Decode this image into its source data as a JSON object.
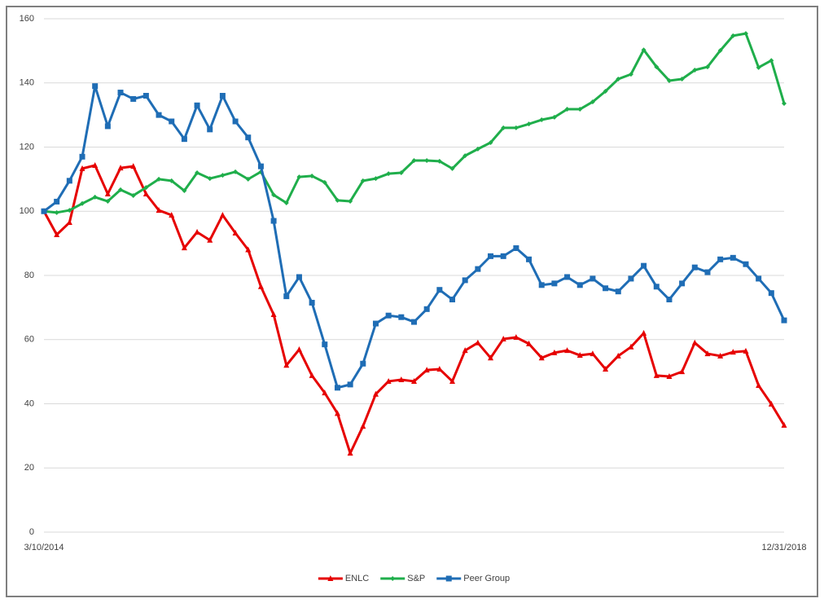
{
  "chart_data": {
    "type": "line",
    "categories": [
      "3/10/2014",
      null,
      null,
      null,
      null,
      null,
      null,
      null,
      null,
      null,
      null,
      null,
      null,
      null,
      null,
      null,
      null,
      null,
      null,
      null,
      null,
      null,
      null,
      null,
      null,
      null,
      null,
      null,
      null,
      null,
      null,
      null,
      null,
      null,
      null,
      null,
      null,
      null,
      null,
      null,
      null,
      null,
      null,
      null,
      null,
      null,
      null,
      null,
      null,
      null,
      null,
      null,
      null,
      null,
      null,
      null,
      null,
      null,
      "12/31/2018"
    ],
    "series": [
      {
        "name": "ENLC",
        "color": "#e60000",
        "marker": "triangle",
        "values": [
          100,
          92.7,
          96.5,
          113.3,
          114.3,
          105.4,
          113.5,
          114,
          105.4,
          100.3,
          98.8,
          88.6,
          93.5,
          91,
          98.8,
          93.2,
          88,
          76.5,
          67.8,
          52,
          56.9,
          48.8,
          43.4,
          37,
          24.6,
          33,
          43,
          47,
          47.5,
          47,
          50.5,
          50.8,
          47,
          56.6,
          59,
          54.3,
          60.2,
          60.7,
          58.7,
          54.3,
          55.9,
          56.6,
          55.1,
          55.6,
          50.8,
          54.9,
          57.7,
          62,
          48.8,
          48.5,
          50,
          59,
          55.6,
          54.9,
          56.1,
          56.4,
          45.7,
          39.9,
          33.3
        ]
      },
      {
        "name": "S&P",
        "color": "#1fae4b",
        "marker": "diamond",
        "values": [
          100,
          99.6,
          100.3,
          102.4,
          104.4,
          103.1,
          106.7,
          104.9,
          107.4,
          110,
          109.5,
          106.4,
          112,
          110.2,
          111.2,
          112.3,
          110,
          112.3,
          105.1,
          102.6,
          110.7,
          111,
          109,
          103.4,
          103.1,
          109.5,
          110.2,
          111.7,
          112,
          115.8,
          115.8,
          115.6,
          113.3,
          117.3,
          119.4,
          121.4,
          126,
          126,
          127.2,
          128.5,
          129.3,
          131.8,
          131.8,
          134.1,
          137.4,
          141.2,
          142.7,
          150.3,
          145,
          140.7,
          141.2,
          144,
          145,
          150.1,
          154.7,
          155.4,
          144.8,
          147,
          133.6
        ]
      },
      {
        "name": "Peer Group",
        "color": "#1f6db5",
        "marker": "square",
        "values": [
          100,
          103,
          109.5,
          117,
          139,
          126.5,
          137,
          135,
          136,
          130,
          128,
          122.5,
          133,
          125.5,
          136,
          128,
          123,
          114,
          97,
          73.5,
          79.5,
          71.5,
          58.5,
          45,
          46,
          52.5,
          65,
          67.5,
          67,
          65.5,
          69.5,
          75.5,
          72.5,
          78.5,
          82,
          86,
          86,
          88.5,
          85,
          77,
          77.5,
          79.5,
          77,
          79,
          76,
          75,
          79,
          83,
          76.5,
          72.5,
          77.5,
          82.5,
          81,
          85,
          85.5,
          83.5,
          79,
          74.5,
          66
        ]
      }
    ],
    "ylim": [
      0,
      160
    ],
    "yticks": [
      0,
      20,
      40,
      60,
      80,
      100,
      120,
      140,
      160
    ],
    "grid": true,
    "legend": "bottom"
  }
}
